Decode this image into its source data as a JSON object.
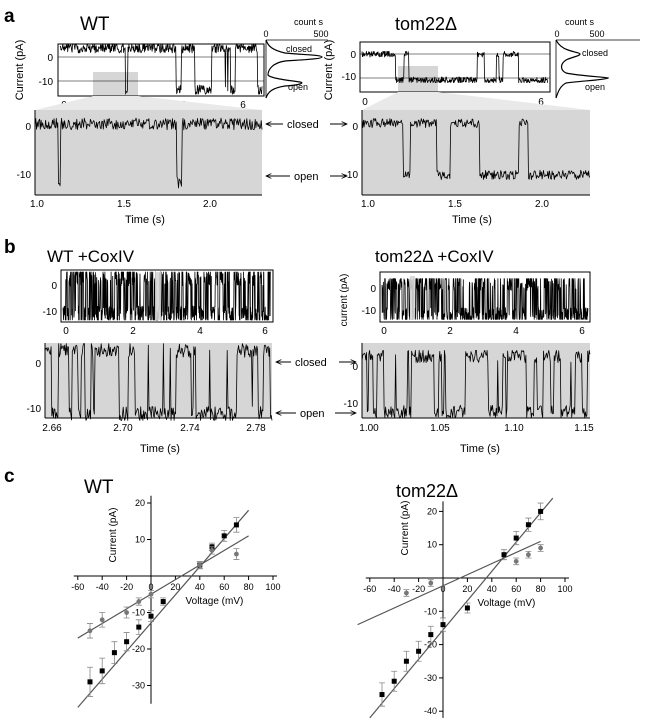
{
  "panels": {
    "a": {
      "label": "a",
      "wt": {
        "title": "WT",
        "ylabel": "Current (pA)",
        "xlabel": "Time (s)",
        "top_xticks": [
          "0",
          "2",
          "4",
          "6"
        ],
        "top_yticks": [
          "0",
          "-10"
        ],
        "hist_title": "count s",
        "hist_ticks": [
          "0",
          "500"
        ],
        "hist_labels": [
          "closed",
          "open"
        ],
        "zoom_xticks": [
          "1.0",
          "1.5",
          "2.0"
        ],
        "zoom_yticks": [
          "0",
          "-10"
        ],
        "state_labels": [
          "closed",
          "open"
        ]
      },
      "tom22": {
        "title": "tom22Δ",
        "ylabel": "Current (pA)",
        "xlabel": "Time (s)",
        "top_xticks": [
          "0",
          "2",
          "4",
          "6"
        ],
        "top_yticks": [
          "0",
          "-10"
        ],
        "hist_title": "count s",
        "hist_ticks": [
          "0",
          "500"
        ],
        "hist_labels": [
          "closed",
          "open"
        ],
        "zoom_xticks": [
          "1.0",
          "1.5",
          "2.0"
        ],
        "zoom_yticks": [
          "0",
          "-10"
        ]
      }
    },
    "b": {
      "label": "b",
      "wt": {
        "title": "WT +CoxIV",
        "xlabel": "Time (s)",
        "top_xticks": [
          "0",
          "2",
          "4",
          "6"
        ],
        "top_yticks": [
          "0",
          "-10"
        ],
        "zoom_xticks": [
          "2.66",
          "2.70",
          "2.74",
          "2.78"
        ],
        "zoom_yticks": [
          "0",
          "-10"
        ],
        "state_labels": [
          "closed",
          "open"
        ]
      },
      "tom22": {
        "title": "tom22Δ +CoxIV",
        "ylabel": "current (pA)",
        "xlabel": "Time (s)",
        "top_xticks": [
          "0",
          "2",
          "4",
          "6"
        ],
        "top_yticks": [
          "0",
          "-10"
        ],
        "zoom_xticks": [
          "1.00",
          "1.05",
          "1.10",
          "1.15"
        ],
        "zoom_yticks": [
          "0",
          "-10"
        ]
      }
    },
    "c": {
      "label": "c"
    }
  },
  "chart_data": [
    {
      "type": "scatter",
      "title": "WT",
      "xlabel": "Voltage (mV)",
      "ylabel": "Current (pA)",
      "xlim": [
        -60,
        100
      ],
      "ylim": [
        -35,
        22
      ],
      "xticks": [
        -60,
        -40,
        -20,
        0,
        20,
        40,
        60,
        80,
        100
      ],
      "yticks": [
        -30,
        -20,
        -10,
        10,
        20
      ],
      "series": [
        {
          "marker": "square",
          "x": [
            -50,
            -40,
            -30,
            -20,
            -10,
            0,
            10,
            40,
            50,
            60,
            70
          ],
          "y": [
            -29,
            -26,
            -21,
            -18,
            -14,
            -11,
            -7,
            3,
            8,
            11,
            14
          ],
          "err": [
            4,
            3.5,
            3,
            2.5,
            2,
            1.5,
            1,
            1,
            1,
            1.5,
            2
          ],
          "fit": {
            "x": [
              -60,
              80
            ],
            "y": [
              -36,
              18
            ]
          }
        },
        {
          "marker": "circle",
          "x": [
            -50,
            -40,
            -20,
            -10,
            0,
            40,
            50,
            70
          ],
          "y": [
            -15,
            -12,
            -10,
            -7,
            -5,
            3,
            7,
            6
          ],
          "err": [
            2,
            2,
            1.5,
            1,
            1,
            1,
            1,
            1.5
          ],
          "fit": {
            "x": [
              -60,
              80
            ],
            "y": [
              -17,
              11
            ]
          }
        }
      ]
    },
    {
      "type": "scatter",
      "title": "tom22Δ",
      "xlabel": "Voltage (mV)",
      "ylabel": "Current (pA)",
      "xlim": [
        -60,
        100
      ],
      "ylim": [
        -42,
        23
      ],
      "xticks": [
        -60,
        -40,
        -20,
        0,
        20,
        40,
        60,
        80,
        100
      ],
      "yticks": [
        -40,
        -30,
        -20,
        -10,
        10,
        20
      ],
      "series": [
        {
          "marker": "square",
          "x": [
            -50,
            -40,
            -30,
            -20,
            -10,
            0,
            20,
            50,
            60,
            70,
            80
          ],
          "y": [
            -35,
            -31,
            -25,
            -22,
            -17,
            -14,
            -9,
            7,
            12,
            16,
            20
          ],
          "err": [
            3.5,
            3,
            3,
            3,
            2.5,
            2,
            1.5,
            1.5,
            2,
            2,
            2.5
          ],
          "fit": {
            "x": [
              -60,
              90
            ],
            "y": [
              -42,
              24
            ]
          }
        },
        {
          "marker": "circle",
          "x": [
            -30,
            -10,
            60,
            70,
            80
          ],
          "y": [
            -4.5,
            -1.5,
            5,
            7,
            9
          ],
          "err": [
            1,
            1,
            1,
            1,
            1
          ],
          "fit": {
            "x": [
              -70,
              80
            ],
            "y": [
              -14,
              11
            ]
          }
        }
      ]
    }
  ]
}
